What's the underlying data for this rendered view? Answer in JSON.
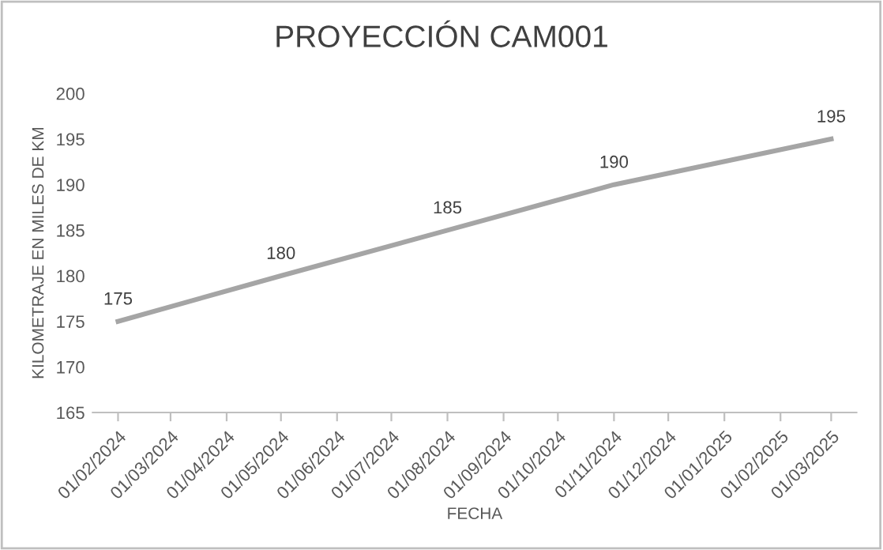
{
  "chart_data": {
    "type": "line",
    "title": "PROYECCIÓN CAM001",
    "xlabel": "FECHA",
    "ylabel": "KILOMETRAJE EN MILES DE KM",
    "x": [
      "2024-02-01",
      "2024-05-01",
      "2024-08-01",
      "2024-11-01",
      "2025-03-01"
    ],
    "series": [
      {
        "color": "#a5a5a5",
        "values": [
          175,
          180,
          185,
          190,
          195
        ]
      }
    ],
    "data_labels": true,
    "marker": "none",
    "line_style": "solid",
    "grid": false,
    "legend": false,
    "ylim": [
      165,
      200
    ],
    "yticks": [
      165,
      170,
      175,
      180,
      185,
      190,
      195,
      200
    ],
    "xlim": [
      "2024-01-18",
      "2025-03-15"
    ],
    "xticks": [
      {
        "value": "2024-02-01",
        "label": "01/02/2024"
      },
      {
        "value": "2024-03-01",
        "label": "01/03/2024"
      },
      {
        "value": "2024-04-01",
        "label": "01/04/2024"
      },
      {
        "value": "2024-05-01",
        "label": "01/05/2024"
      },
      {
        "value": "2024-06-01",
        "label": "01/06/2024"
      },
      {
        "value": "2024-07-01",
        "label": "01/07/2024"
      },
      {
        "value": "2024-08-01",
        "label": "01/08/2024"
      },
      {
        "value": "2024-09-01",
        "label": "01/09/2024"
      },
      {
        "value": "2024-10-01",
        "label": "01/10/2024"
      },
      {
        "value": "2024-11-01",
        "label": "01/11/2024"
      },
      {
        "value": "2024-12-01",
        "label": "01/12/2024"
      },
      {
        "value": "2025-01-01",
        "label": "01/01/2025"
      },
      {
        "value": "2025-02-01",
        "label": "01/02/2025"
      },
      {
        "value": "2025-03-01",
        "label": "01/03/2025"
      }
    ]
  }
}
